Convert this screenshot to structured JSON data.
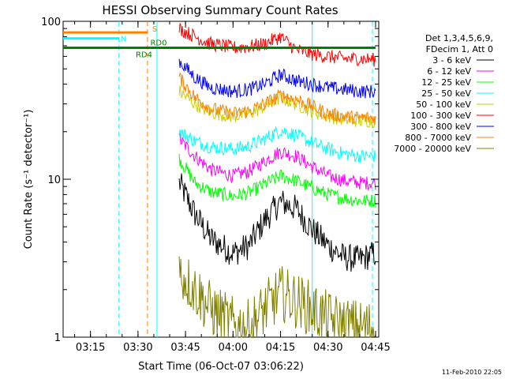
{
  "chart_data": {
    "type": "line",
    "title": "HESSI Observing Summary Count Rates",
    "xlabel": "Start Time (06-Oct-07 03:06:22)",
    "ylabel": "Count Rate (s⁻¹ detector⁻¹)",
    "y_scale": "log",
    "ylim": [
      1,
      100
    ],
    "xlim": [
      "03:06:22",
      "04:46:00"
    ],
    "x_ticks": [
      "03:15",
      "03:30",
      "03:45",
      "04:00",
      "04:15",
      "04:30",
      "04:45"
    ],
    "y_ticks": [
      "1",
      "10",
      "100"
    ],
    "grid": false,
    "legend_position": "right",
    "legend_header": [
      "Det 1,3,4,5,6,9,",
      "FDecim 1, Att 0"
    ],
    "series": [
      {
        "name": "3 - 6 keV",
        "color": "#000000",
        "x": [
          "03:43",
          "03:48",
          "03:53",
          "04:00",
          "04:05",
          "04:10",
          "04:15",
          "04:20",
          "04:25",
          "04:30",
          "04:35",
          "04:40",
          "04:45"
        ],
        "y": [
          9.5,
          6,
          4.2,
          3.4,
          3.8,
          5.5,
          7.2,
          6.5,
          4.8,
          3.8,
          3.2,
          3.1,
          3.4
        ]
      },
      {
        "name": "6 - 12 keV",
        "color": "#ff00ff",
        "x": [
          "03:43",
          "03:48",
          "03:53",
          "04:00",
          "04:05",
          "04:10",
          "04:15",
          "04:20",
          "04:25",
          "04:30",
          "04:35",
          "04:40",
          "04:45"
        ],
        "y": [
          18,
          14,
          11.5,
          10.5,
          11.2,
          13,
          15,
          14,
          12,
          10.5,
          9.8,
          9.5,
          9.5
        ]
      },
      {
        "name": "12 - 25 keV",
        "color": "#00ff00",
        "x": [
          "03:43",
          "03:48",
          "03:53",
          "04:00",
          "04:05",
          "04:10",
          "04:15",
          "04:20",
          "04:25",
          "04:30",
          "04:35",
          "04:40",
          "04:45"
        ],
        "y": [
          13.5,
          9.5,
          8.3,
          7.8,
          8.2,
          9.3,
          10.5,
          9.8,
          8.8,
          8,
          7.6,
          7.3,
          7.3
        ]
      },
      {
        "name": "25 - 50 keV",
        "color": "#00ffff",
        "x": [
          "03:43",
          "03:48",
          "03:53",
          "04:00",
          "04:05",
          "04:10",
          "04:15",
          "04:20",
          "04:25",
          "04:30",
          "04:35",
          "04:40",
          "04:45"
        ],
        "y": [
          20,
          17.5,
          16,
          15.5,
          16.2,
          18,
          20.5,
          19,
          17,
          15.5,
          14.5,
          14,
          14
        ]
      },
      {
        "name": "50 - 100 keV",
        "color": "#cccc00",
        "x": [
          "03:43",
          "03:48",
          "03:53",
          "04:00",
          "04:05",
          "04:10",
          "04:15",
          "04:20",
          "04:25",
          "04:30",
          "04:35",
          "04:40",
          "04:45"
        ],
        "y": [
          36,
          30,
          26.5,
          25,
          26,
          29,
          33,
          30,
          27,
          25,
          24,
          23.5,
          23.5
        ]
      },
      {
        "name": "100 - 300 keV",
        "color": "#ff0000",
        "x": [
          "03:43",
          "03:48",
          "03:53",
          "04:00",
          "04:05",
          "04:10",
          "04:15",
          "04:20",
          "04:25",
          "04:30",
          "04:35",
          "04:40",
          "04:45"
        ],
        "y": [
          90,
          80,
          72,
          68,
          69,
          72,
          80,
          66,
          62,
          60,
          58,
          58,
          57
        ]
      },
      {
        "name": "300 - 800 keV",
        "color": "#0000ff",
        "x": [
          "03:43",
          "03:48",
          "03:53",
          "04:00",
          "04:05",
          "04:10",
          "04:15",
          "04:20",
          "04:25",
          "04:30",
          "04:35",
          "04:40",
          "04:45"
        ],
        "y": [
          56,
          44,
          38,
          36,
          37,
          40,
          46,
          42,
          40,
          38,
          37,
          36,
          36
        ]
      },
      {
        "name": "800 - 7000 keV",
        "color": "#ff8000",
        "x": [
          "03:43",
          "03:48",
          "03:53",
          "04:00",
          "04:05",
          "04:10",
          "04:15",
          "04:20",
          "04:25",
          "04:30",
          "04:35",
          "04:40",
          "04:45"
        ],
        "y": [
          44,
          33,
          28,
          26,
          27,
          30,
          34,
          32,
          29,
          26,
          25,
          24.5,
          24.5
        ]
      },
      {
        "name": "7000 - 20000 keV",
        "color": "#808000",
        "x": [
          "03:43",
          "03:48",
          "03:53",
          "04:00",
          "04:05",
          "04:10",
          "04:15",
          "04:20",
          "04:25",
          "04:30",
          "04:35",
          "04:40",
          "04:45"
        ],
        "y": [
          2.6,
          2.0,
          1.5,
          1.2,
          1.15,
          1.5,
          1.9,
          1.7,
          1.5,
          1.3,
          1.2,
          1.15,
          1.15
        ]
      }
    ],
    "annotations": [
      {
        "text": "S",
        "color": "#ff8000",
        "x_start": "03:06:22",
        "x_end": "03:33",
        "y": 85
      },
      {
        "text": "N",
        "color": "#00ffff",
        "x_start": "03:06:22",
        "x_end": "03:24",
        "y": 78
      },
      {
        "text": "RD0",
        "color": "#008000",
        "x_start": "03:36",
        "x_end": "04:45",
        "y": 68
      },
      {
        "text": "RD4",
        "color": "#008000",
        "x_start": "03:06:22",
        "x_end": "03:36",
        "y": 68
      }
    ],
    "vertical_markers": [
      {
        "x": "03:24",
        "color": "#00ffff",
        "style": "dashed"
      },
      {
        "x": "03:33",
        "color": "#ff8000",
        "style": "dashed"
      },
      {
        "x": "04:44",
        "color": "#00ffff",
        "style": "dashed"
      },
      {
        "x": "04:25",
        "color": "#00ffff",
        "style": "solid"
      },
      {
        "x": "03:36",
        "color": "#00ffff",
        "style": "solid"
      }
    ]
  },
  "footer_timestamp": "11-Feb-2010 22:05"
}
